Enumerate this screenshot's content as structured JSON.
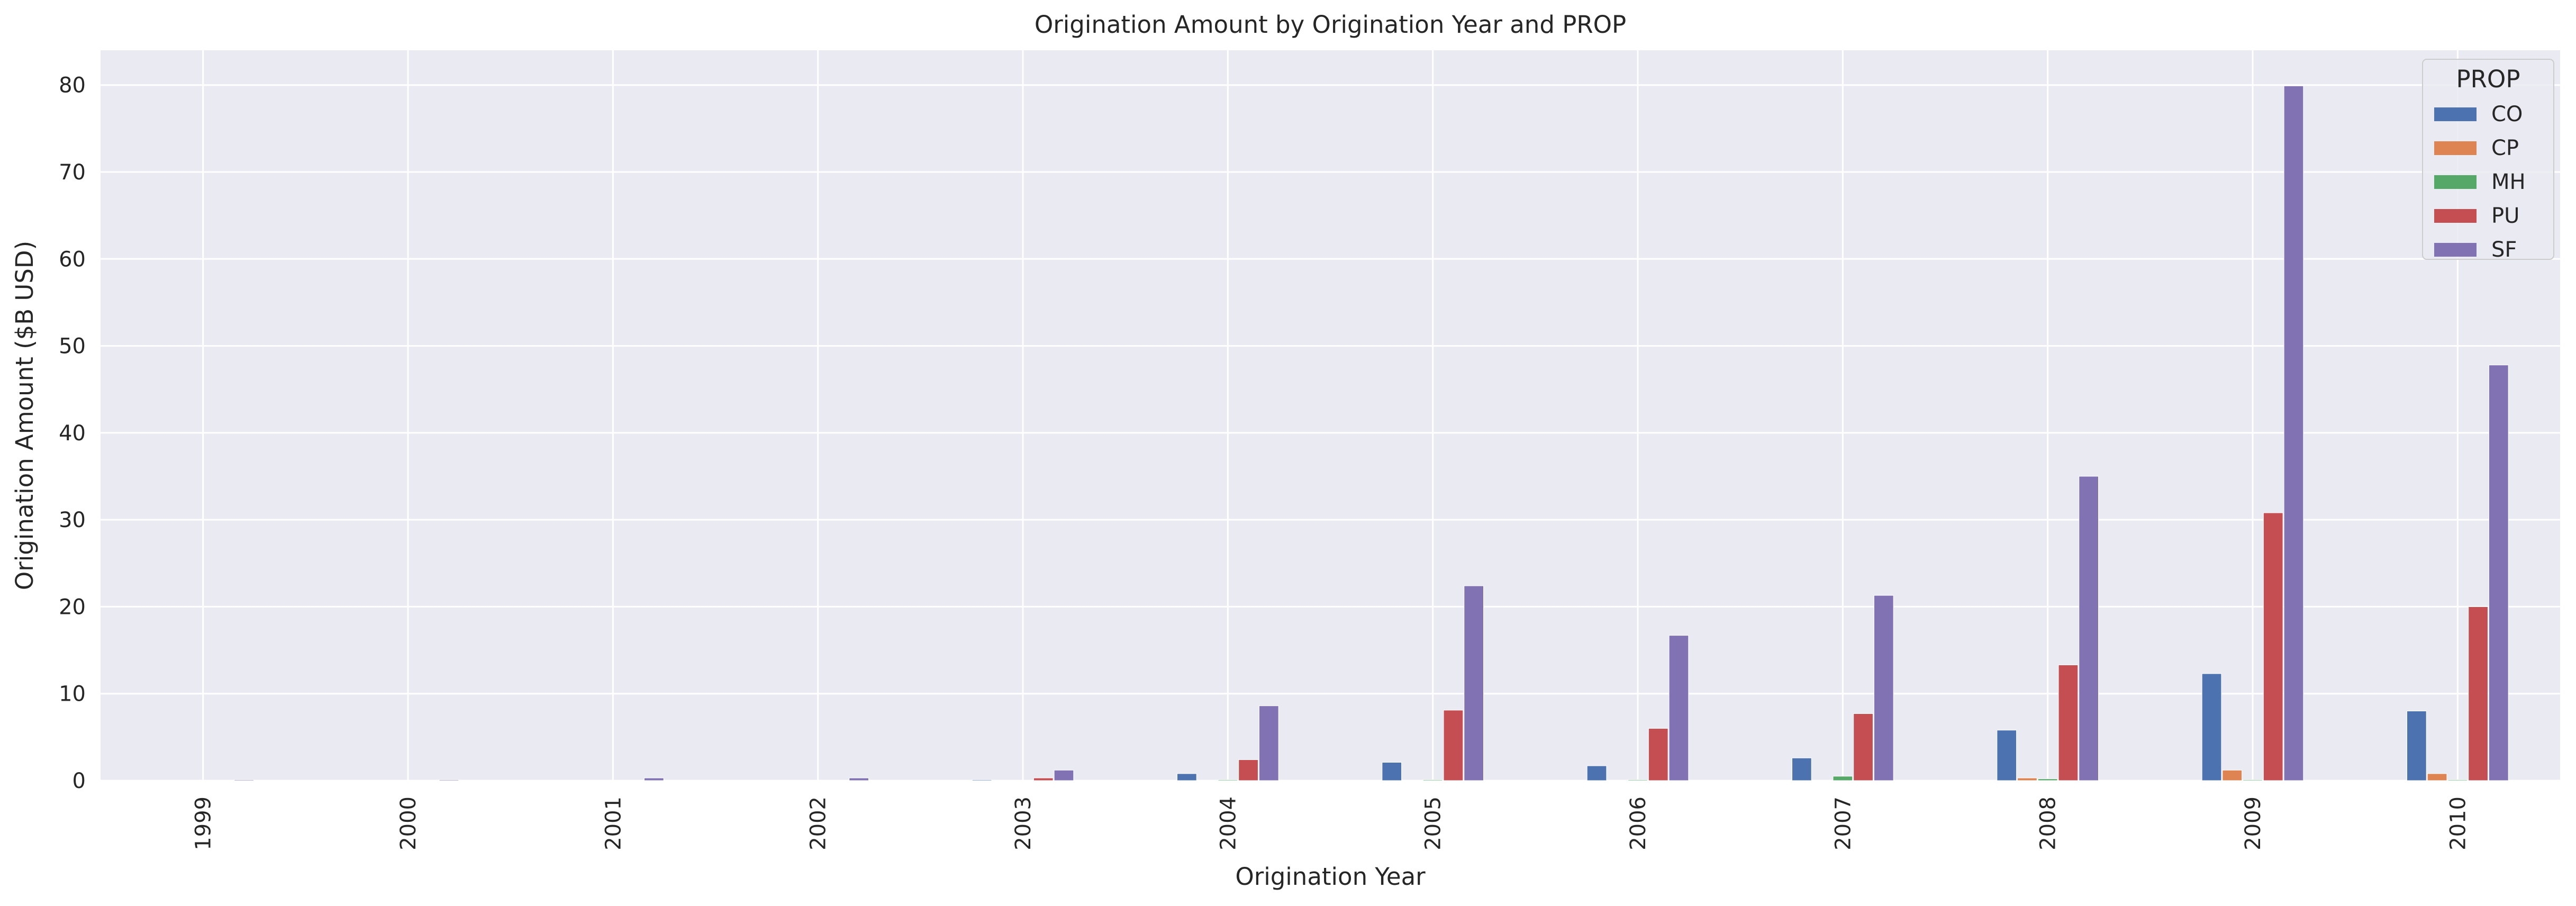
{
  "colors": {
    "background": "#eaeaf2",
    "grid": "#ffffff",
    "series": {
      "CO": "#4c72b0",
      "CP": "#dd8452",
      "MH": "#55a868",
      "PU": "#c44e52",
      "SF": "#8172b3"
    }
  },
  "chart_data": {
    "type": "bar",
    "title": "Origination Amount by Origination Year and PROP",
    "xlabel": "Origination Year",
    "ylabel": "Origination Amount ($B USD)",
    "ylim": [
      0,
      84
    ],
    "yticks": [
      0,
      10,
      20,
      30,
      40,
      50,
      60,
      70,
      80
    ],
    "grid": true,
    "legend_title": "PROP",
    "legend_position": "top-right",
    "categories": [
      "1999",
      "2000",
      "2001",
      "2002",
      "2003",
      "2004",
      "2005",
      "2006",
      "2007",
      "2008",
      "2009",
      "2010"
    ],
    "series": [
      {
        "name": "CO",
        "values": [
          0.02,
          0.02,
          0.05,
          0.05,
          0.1,
          0.8,
          2.1,
          1.7,
          2.6,
          5.8,
          12.3,
          8.0
        ]
      },
      {
        "name": "CP",
        "values": [
          0.0,
          0.0,
          0.0,
          0.0,
          0.0,
          0.0,
          0.0,
          0.0,
          0.0,
          0.3,
          1.2,
          0.8
        ]
      },
      {
        "name": "MH",
        "values": [
          0.0,
          0.0,
          0.0,
          0.0,
          0.0,
          0.1,
          0.1,
          0.1,
          0.5,
          0.2,
          0.1,
          0.1
        ]
      },
      {
        "name": "PU",
        "values": [
          0.02,
          0.02,
          0.05,
          0.05,
          0.3,
          2.4,
          8.1,
          6.0,
          7.7,
          13.3,
          30.8,
          20.0
        ]
      },
      {
        "name": "SF",
        "values": [
          0.1,
          0.1,
          0.3,
          0.3,
          1.2,
          8.6,
          22.4,
          16.7,
          21.3,
          35.0,
          79.9,
          47.8
        ]
      }
    ]
  }
}
